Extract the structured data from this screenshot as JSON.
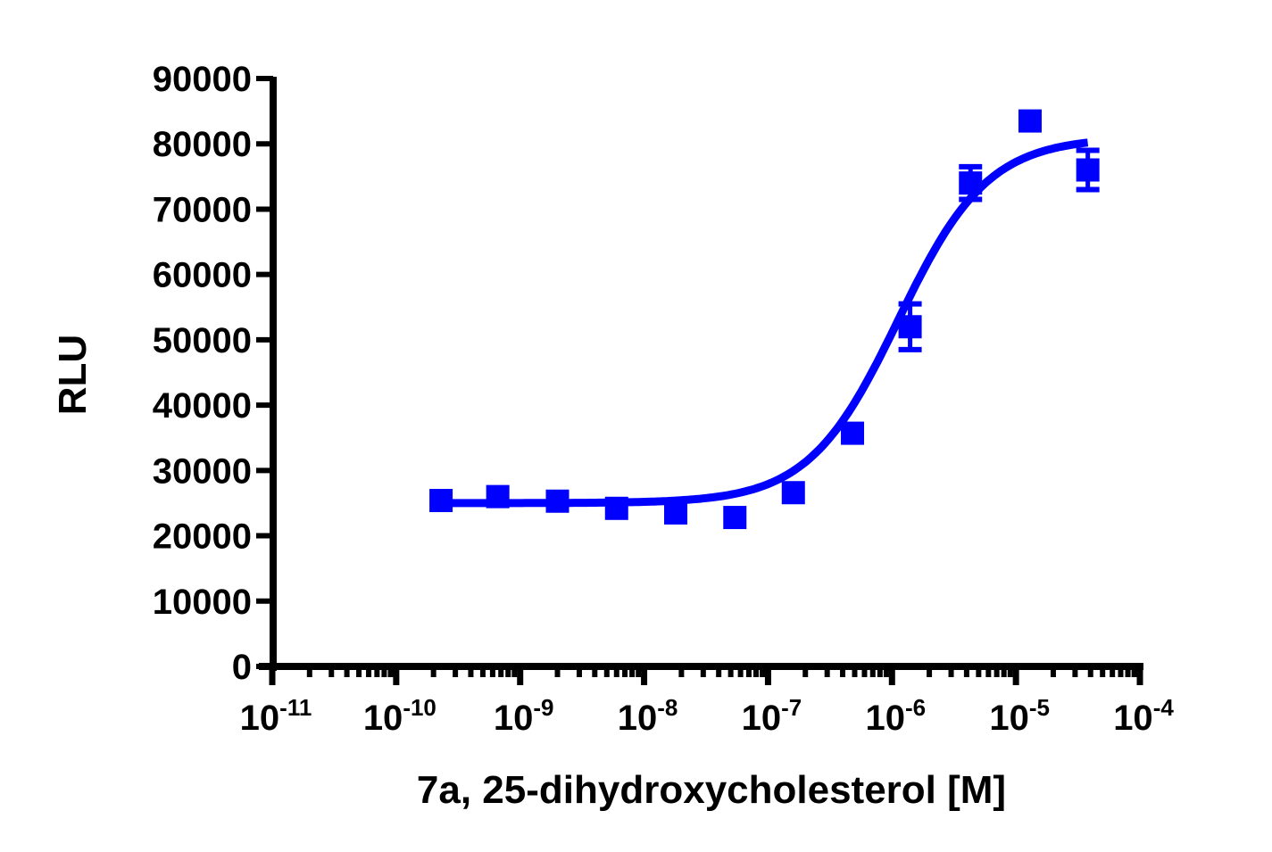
{
  "chart_data": {
    "type": "scatter",
    "title": "",
    "xlabel": "7a, 25-dihydroxycholesterol [M]",
    "ylabel": "RLU",
    "xscale": "log",
    "xlim": [
      1e-11,
      0.0001
    ],
    "ylim": [
      0,
      90000
    ],
    "grid": false,
    "legend": null,
    "x_ticks": [
      {
        "base": "10",
        "exp": "-11",
        "value": 1e-11
      },
      {
        "base": "10",
        "exp": "-10",
        "value": 1e-10
      },
      {
        "base": "10",
        "exp": "-9",
        "value": 1e-09
      },
      {
        "base": "10",
        "exp": "-8",
        "value": 1e-08
      },
      {
        "base": "10",
        "exp": "-7",
        "value": 1e-07
      },
      {
        "base": "10",
        "exp": "-6",
        "value": 1e-06
      },
      {
        "base": "10",
        "exp": "-5",
        "value": 1e-05
      },
      {
        "base": "10",
        "exp": "-4",
        "value": 0.0001
      }
    ],
    "y_ticks": [
      "0",
      "10000",
      "20000",
      "30000",
      "40000",
      "50000",
      "60000",
      "70000",
      "80000",
      "90000"
    ],
    "series": [
      {
        "name": "7a, 25-dihydroxycholesterol",
        "color": "#0000ff",
        "marker": "square",
        "points": [
          {
            "x": 2.3e-10,
            "y": 25400,
            "err": 0
          },
          {
            "x": 6.6e-10,
            "y": 26000,
            "err": 0
          },
          {
            "x": 2e-09,
            "y": 25300,
            "err": 0
          },
          {
            "x": 6e-09,
            "y": 24200,
            "err": 0
          },
          {
            "x": 1.8e-08,
            "y": 23500,
            "err": 0
          },
          {
            "x": 5.4e-08,
            "y": 22800,
            "err": 0
          },
          {
            "x": 1.6e-07,
            "y": 26600,
            "err": 0
          },
          {
            "x": 4.8e-07,
            "y": 35700,
            "err": 0
          },
          {
            "x": 1.4e-06,
            "y": 52000,
            "err": 3500
          },
          {
            "x": 4.3e-06,
            "y": 74000,
            "err": 2500
          },
          {
            "x": 1.3e-05,
            "y": 83500,
            "err": 0
          },
          {
            "x": 3.8e-05,
            "y": 76000,
            "err": 3000
          }
        ],
        "fit": {
          "model": "sigmoidal dose-response (4PL)",
          "bottom": 25000,
          "top": 81000,
          "logEC50": -5.95,
          "hillslope": 1.2,
          "x_range": [
            2.3e-10,
            3.8e-05
          ]
        }
      }
    ]
  }
}
